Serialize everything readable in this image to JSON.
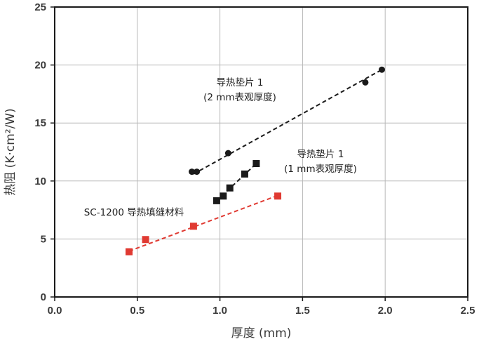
{
  "chart_data": {
    "type": "scatter",
    "xlabel": "厚度 (mm)",
    "ylabel": "热阻 (K·cm²/W)",
    "xlim": [
      0,
      2.5
    ],
    "ylim": [
      0,
      25
    ],
    "xticks": [
      "0.0",
      "0.5",
      "1.0",
      "1.5",
      "2.0",
      "2.5"
    ],
    "yticks": [
      "0",
      "5",
      "10",
      "15",
      "20",
      "25"
    ],
    "grid": true,
    "series": [
      {
        "name": "导热垫片 1 (2 mm表观厚度)",
        "label_lines": [
          "导热垫片 1",
          "(2 mm表观厚度)"
        ],
        "marker": "circle",
        "color": "#1a1a1a",
        "x": [
          0.83,
          0.86,
          1.05,
          1.88,
          1.98
        ],
        "y": [
          10.8,
          10.8,
          12.4,
          18.5,
          19.6
        ],
        "trendline": {
          "x": [
            0.84,
            1.98
          ],
          "y": [
            10.6,
            19.6
          ]
        }
      },
      {
        "name": "导热垫片 1 (1 mm表观厚度)",
        "label_lines": [
          "导热垫片 1",
          "(1 mm表观厚度)"
        ],
        "marker": "square",
        "color": "#1a1a1a",
        "x": [
          0.98,
          1.02,
          1.06,
          1.15,
          1.22
        ],
        "y": [
          8.3,
          8.7,
          9.4,
          10.6,
          11.5
        ],
        "trendline": {
          "x": [
            0.98,
            1.22
          ],
          "y": [
            8.3,
            11.5
          ]
        }
      },
      {
        "name": "SC-1200 导热填缝材料",
        "label_lines": [
          "SC-1200 导热填缝材料"
        ],
        "marker": "square",
        "color": "#e03a32",
        "x": [
          0.45,
          0.55,
          0.84,
          1.35
        ],
        "y": [
          3.9,
          4.95,
          6.1,
          8.7
        ],
        "trendline": {
          "x": [
            0.45,
            1.35
          ],
          "y": [
            3.95,
            8.75
          ]
        }
      }
    ]
  }
}
